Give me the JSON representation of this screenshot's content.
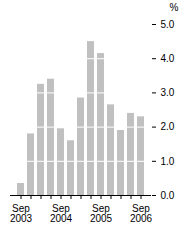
{
  "chart_data": {
    "type": "bar",
    "categories": [
      "Sep 2003",
      null,
      null,
      null,
      "Sep 2004",
      null,
      null,
      null,
      "Sep 2005",
      null,
      null,
      null,
      "Sep 2006"
    ],
    "values": [
      0.35,
      1.8,
      3.25,
      3.4,
      1.95,
      1.6,
      2.85,
      4.5,
      4.15,
      2.65,
      1.9,
      2.4,
      2.3
    ],
    "color": "#c0c0c0",
    "ylabel": "%",
    "ylim": [
      0,
      5
    ],
    "yticks": [
      0,
      1,
      2,
      3,
      4,
      5
    ],
    "grid": true
  }
}
